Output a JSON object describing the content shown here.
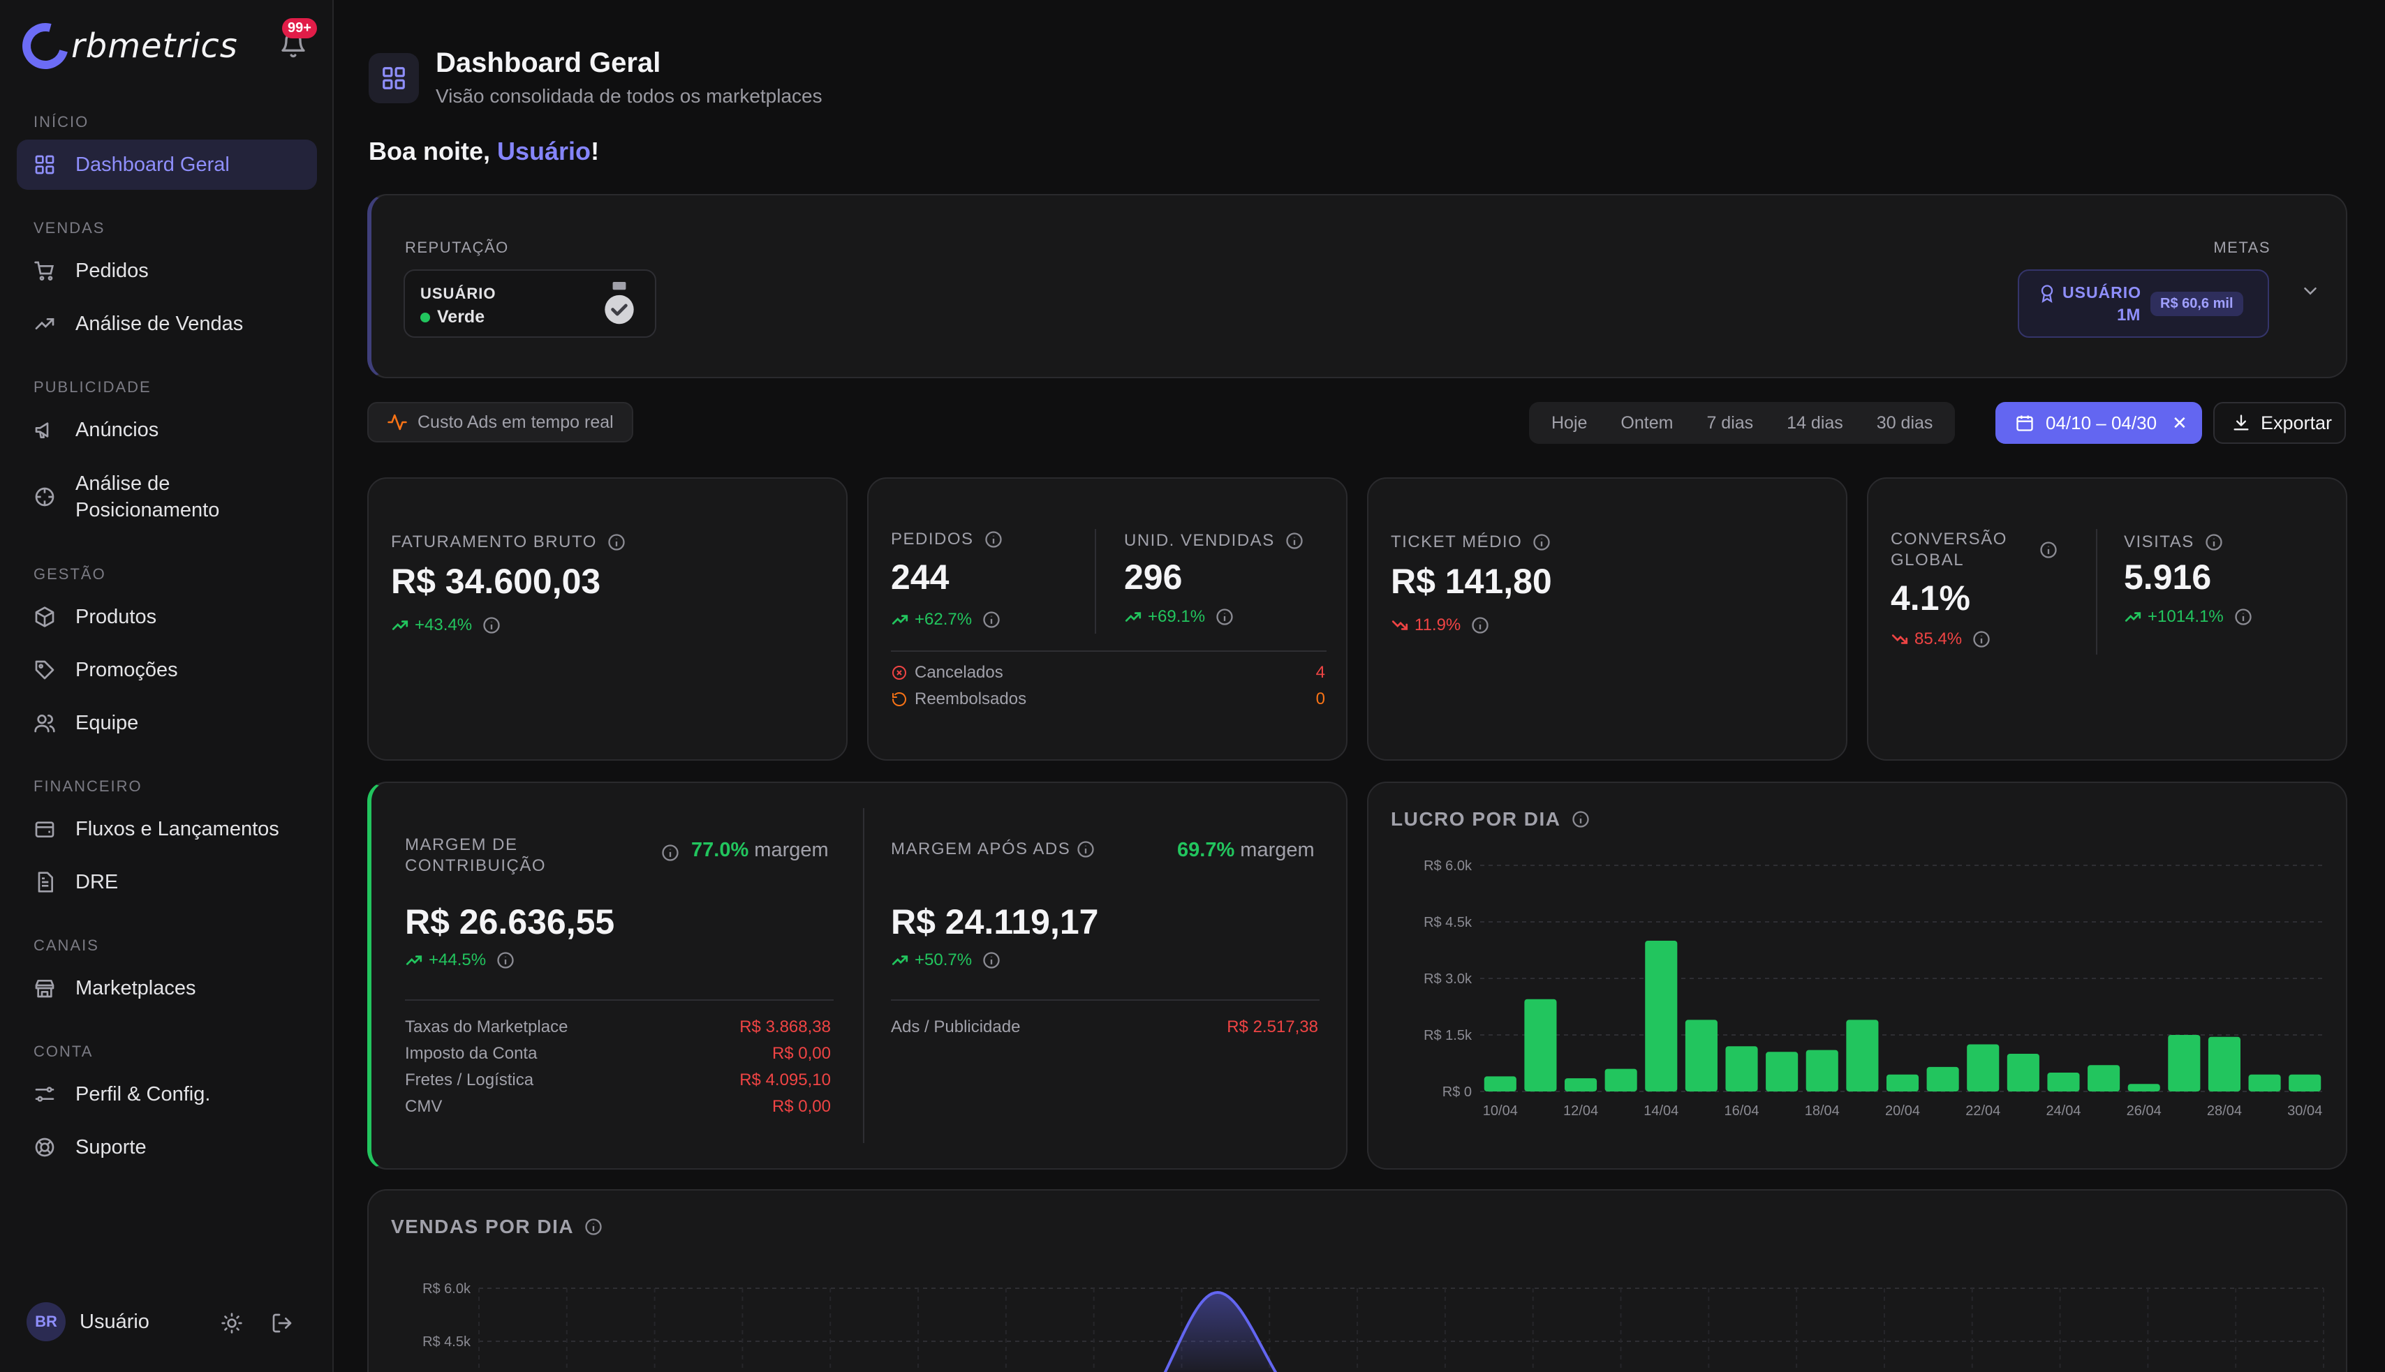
{
  "app": {
    "logo_text": "rbmetrics",
    "notification_badge": "99+"
  },
  "sidebar": {
    "sections": [
      {
        "label": "INÍCIO",
        "items": [
          {
            "label": "Dashboard Geral",
            "icon": "grid-icon"
          }
        ]
      },
      {
        "label": "VENDAS",
        "items": [
          {
            "label": "Pedidos",
            "icon": "cart-icon"
          },
          {
            "label": "Análise de Vendas",
            "icon": "trend-up-icon"
          }
        ]
      },
      {
        "label": "PUBLICIDADE",
        "items": [
          {
            "label": "Anúncios",
            "icon": "megaphone-icon"
          },
          {
            "label": "Análise de Posicionamento",
            "icon": "crosshair-icon"
          }
        ]
      },
      {
        "label": "GESTÃO",
        "items": [
          {
            "label": "Produtos",
            "icon": "box-icon"
          },
          {
            "label": "Promoções",
            "icon": "tag-icon"
          },
          {
            "label": "Equipe",
            "icon": "users-icon"
          }
        ]
      },
      {
        "label": "FINANCEIRO",
        "items": [
          {
            "label": "Fluxos e Lançamentos",
            "icon": "wallet-icon"
          },
          {
            "label": "DRE",
            "icon": "file-icon"
          }
        ]
      },
      {
        "label": "CANAIS",
        "items": [
          {
            "label": "Marketplaces",
            "icon": "store-icon"
          }
        ]
      },
      {
        "label": "CONTA",
        "items": [
          {
            "label": "Perfil & Config.",
            "icon": "settings-icon"
          },
          {
            "label": "Suporte",
            "icon": "lifebuoy-icon"
          }
        ]
      }
    ],
    "user": {
      "initials": "BR",
      "name": "Usuário"
    }
  },
  "header": {
    "title": "Dashboard Geral",
    "subtitle": "Visão consolidada de todos os marketplaces",
    "greeting_prefix": "Boa noite, ",
    "greeting_user": "Usuário",
    "greeting_suffix": "!"
  },
  "reputation": {
    "label": "REPUTAÇÃO",
    "user": "USUÁRIO",
    "status": "Verde",
    "status_color": "#22c55e",
    "metas_label": "METAS",
    "metas_user": "USUÁRIO",
    "metas_period": "1M",
    "metas_value": "R$ 60,6 mil"
  },
  "toolbar": {
    "ads_label": "Custo Ads em tempo real",
    "ranges": [
      "Hoje",
      "Ontem",
      "7 dias",
      "14 dias",
      "30 dias"
    ],
    "date_range": "04/10 – 04/30",
    "export_label": "Exportar"
  },
  "kpis": {
    "faturamento": {
      "title": "FATURAMENTO BRUTO",
      "value": "R$ 34.600,03",
      "change": "+43.4%"
    },
    "pedidos": {
      "title": "PEDIDOS",
      "value": "244",
      "change": "+62.7%"
    },
    "unidades": {
      "title": "UNID. VENDIDAS",
      "value": "296",
      "change": "+69.1%"
    },
    "cancelados": {
      "label": "Cancelados",
      "value": "4"
    },
    "reembolsados": {
      "label": "Reembolsados",
      "value": "0"
    },
    "ticket": {
      "title": "TICKET MÉDIO",
      "value": "R$ 141,80",
      "change": "11.9%"
    },
    "conversao": {
      "title_line1": "CONVERSÃO",
      "title_line2": "GLOBAL",
      "value": "4.1%",
      "change": "85.4%"
    },
    "visitas": {
      "title": "VISITAS",
      "value": "5.916",
      "change": "+1014.1%"
    }
  },
  "margem": {
    "contrib": {
      "title_line1": "MARGEM DE",
      "title_line2": "CONTRIBUIÇÃO",
      "pct": "77.0%",
      "pct_suffix": "margem",
      "value": "R$ 26.636,55",
      "change": "+44.5%",
      "rows": [
        {
          "label": "Taxas do Marketplace",
          "value": "R$ 3.868,38"
        },
        {
          "label": "Imposto da Conta",
          "value": "R$ 0,00"
        },
        {
          "label": "Fretes / Logística",
          "value": "R$ 4.095,10"
        },
        {
          "label": "CMV",
          "value": "R$ 0,00"
        }
      ]
    },
    "ads": {
      "title": "MARGEM APÓS ADS",
      "pct": "69.7%",
      "pct_suffix": "margem",
      "value": "R$ 24.119,17",
      "change": "+50.7%",
      "rows": [
        {
          "label": "Ads / Publicidade",
          "value": "R$ 2.517,38"
        }
      ]
    }
  },
  "chart_data": [
    {
      "type": "bar",
      "title": "LUCRO POR DIA",
      "categories": [
        "10/04",
        "11/04",
        "12/04",
        "13/04",
        "14/04",
        "15/04",
        "16/04",
        "17/04",
        "18/04",
        "19/04",
        "20/04",
        "21/04",
        "22/04",
        "23/04",
        "24/04",
        "25/04",
        "26/04",
        "27/04",
        "28/04",
        "29/04",
        "30/04"
      ],
      "values": [
        400,
        2450,
        350,
        600,
        4000,
        1900,
        1200,
        1050,
        1100,
        1900,
        450,
        650,
        1250,
        1000,
        500,
        700,
        200,
        1500,
        1450,
        450,
        450
      ],
      "tick_labels": [
        "10/04",
        "12/04",
        "14/04",
        "16/04",
        "18/04",
        "20/04",
        "22/04",
        "24/04",
        "26/04",
        "28/04",
        "30/04"
      ],
      "y_ticks": [
        "R$ 0",
        "R$ 1.5k",
        "R$ 3.0k",
        "R$ 4.5k",
        "R$ 6.0k"
      ],
      "ylim": [
        0,
        6000
      ],
      "color": "#22c55e",
      "grid": true
    },
    {
      "type": "area",
      "title": "VENDAS POR DIA",
      "y_ticks": [
        "R$ 6.0k",
        "R$ 4.5k"
      ],
      "ylim": [
        0,
        6000
      ],
      "color": "#6366f1",
      "grid": true
    }
  ]
}
